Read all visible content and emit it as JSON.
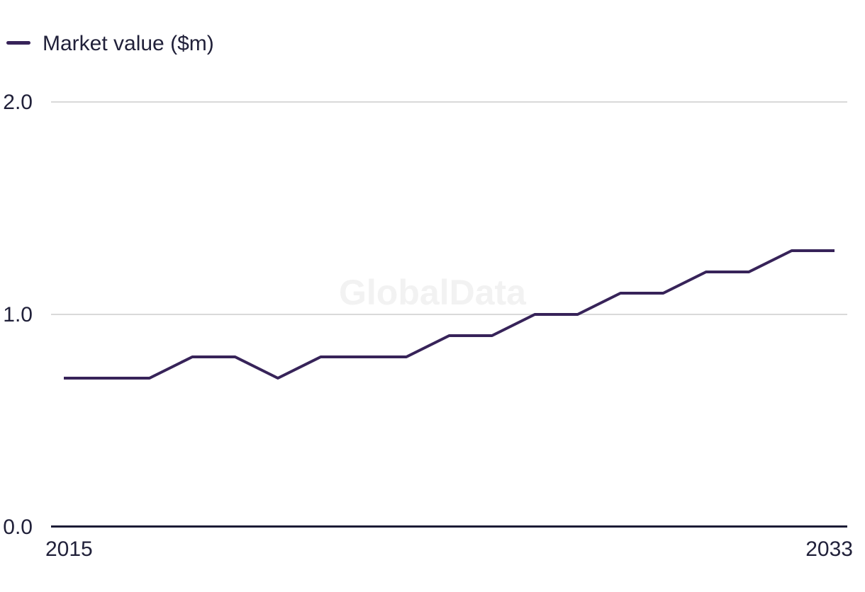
{
  "watermark": {
    "text": "GlobalData"
  },
  "chart_data": {
    "type": "line",
    "title": "",
    "xlabel": "",
    "ylabel": "Market value ($m)",
    "x": [
      2015,
      2016,
      2017,
      2018,
      2019,
      2020,
      2021,
      2022,
      2023,
      2024,
      2025,
      2026,
      2027,
      2028,
      2029,
      2030,
      2031,
      2032,
      2033
    ],
    "series": [
      {
        "name": "Market value ($m)",
        "values": [
          0.7,
          0.7,
          0.7,
          0.8,
          0.8,
          0.7,
          0.8,
          0.8,
          0.8,
          0.9,
          0.9,
          1.0,
          1.0,
          1.1,
          1.1,
          1.2,
          1.2,
          1.3,
          1.3
        ]
      }
    ],
    "xlim": [
      2015,
      2033
    ],
    "ylim": [
      0.0,
      2.0
    ],
    "y_tick_labels": [
      "2.0",
      "1.0",
      "0.0"
    ],
    "x_tick_labels": [
      "2015",
      "2033"
    ],
    "grid": "horizontal-only",
    "legend_position": "top-left",
    "colors": {
      "line": "#372359",
      "gridline": "#d9d9d9",
      "axis": "#1c1c36",
      "text": "#21213a",
      "watermark": "#f2f2f2",
      "background": "#ffffff"
    }
  }
}
